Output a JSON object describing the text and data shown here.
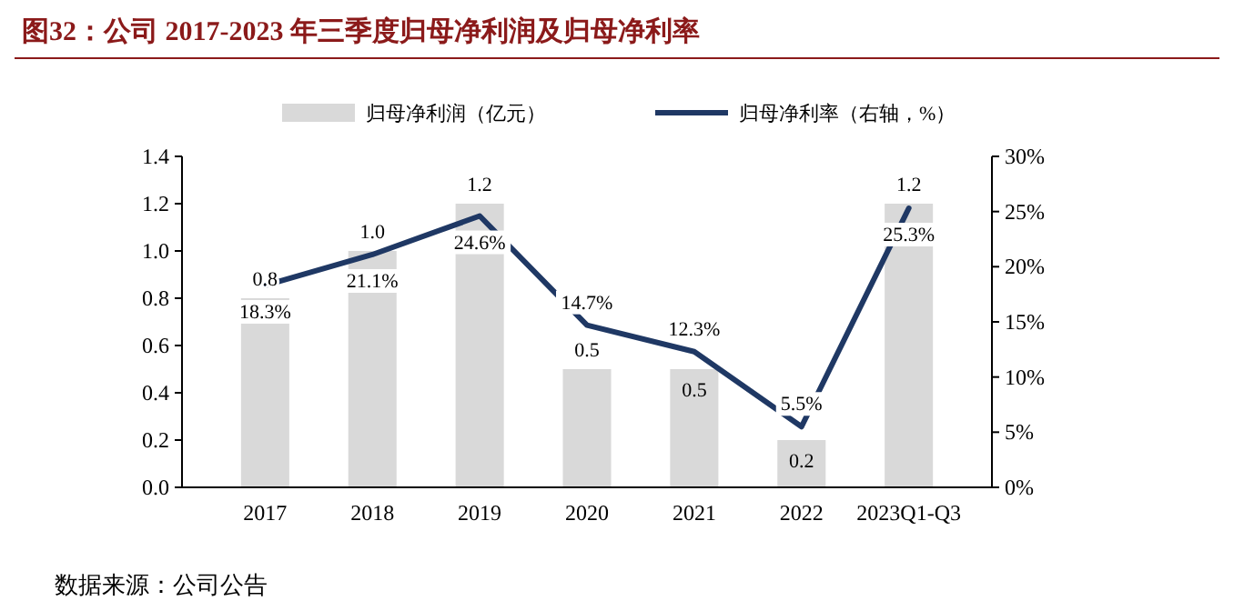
{
  "chart_data": {
    "type": "bar",
    "title": "图32：公司 2017-2023 年三季度归母净利润及归母净利率",
    "categories": [
      "2017",
      "2018",
      "2019",
      "2020",
      "2021",
      "2022",
      "2023Q1-Q3"
    ],
    "series": [
      {
        "name": "归母净利润（亿元）",
        "color": "#d9d9d9",
        "values": [
          0.8,
          1.0,
          1.2,
          0.5,
          0.5,
          0.2,
          1.2
        ],
        "value_labels": [
          "0.8",
          "1.0",
          "1.2",
          "0.5",
          "0.5",
          "0.2",
          "1.2"
        ]
      },
      {
        "name": "归母净利率（右轴，%）",
        "type": "line",
        "axis": "y2",
        "color": "#1f3864",
        "values": [
          18.3,
          21.1,
          24.6,
          14.7,
          12.3,
          5.5,
          25.3
        ],
        "value_labels": [
          "18.3%",
          "21.1%",
          "24.6%",
          "14.7%",
          "12.3%",
          "5.5%",
          "25.3%"
        ]
      }
    ],
    "ylim": [
      0,
      1.4
    ],
    "yticks": [
      {
        "value": 0,
        "label": "0.0"
      },
      {
        "value": 0.2,
        "label": "0.2"
      },
      {
        "value": 0.4,
        "label": "0.4"
      },
      {
        "value": 0.6,
        "label": "0.6"
      },
      {
        "value": 0.8,
        "label": "0.8"
      },
      {
        "value": 1,
        "label": "1.0"
      },
      {
        "value": 1.2,
        "label": "1.2"
      },
      {
        "value": 1.4,
        "label": "1.4"
      }
    ],
    "y2lim": [
      0,
      30
    ],
    "y2ticks": [
      {
        "value": 0,
        "label": "0%"
      },
      {
        "value": 5,
        "label": "5%"
      },
      {
        "value": 10,
        "label": "10%"
      },
      {
        "value": 15,
        "label": "15%"
      },
      {
        "value": 20,
        "label": "20%"
      },
      {
        "value": 25,
        "label": "25%"
      },
      {
        "value": 30,
        "label": "30%"
      }
    ],
    "legend": "top",
    "marker": "none",
    "line_style": "solid",
    "grid": false,
    "annotations": [
      "数据来源：公司公告"
    ]
  }
}
